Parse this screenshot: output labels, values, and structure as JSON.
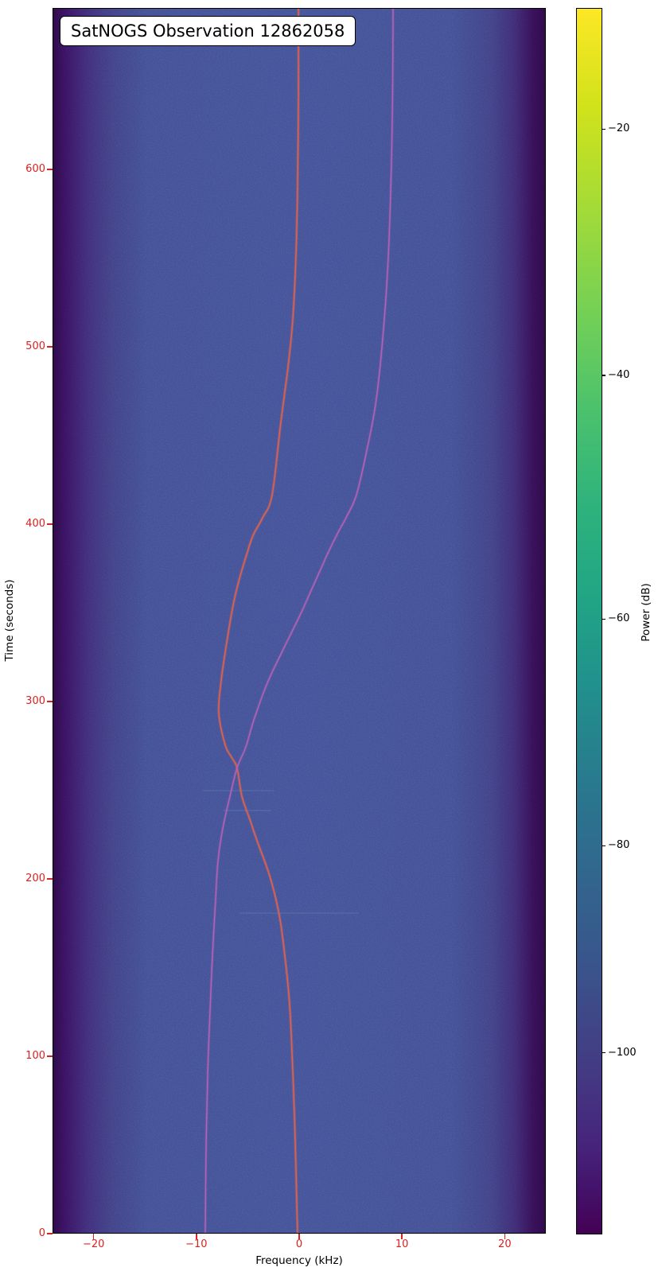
{
  "header": {
    "title": "SatNOGS Observation 12862058"
  },
  "chart_data": {
    "type": "heatmap",
    "subtype": "satnogs-waterfall-spectrogram",
    "title": "SatNOGS Observation 12862058",
    "xlabel": "Frequency (kHz)",
    "ylabel": "Time (seconds)",
    "colorbar_label": "Power (dB)",
    "xlim": [
      -24,
      24
    ],
    "ylim": [
      0,
      691
    ],
    "x_ticks": [
      -20,
      -10,
      0,
      10,
      20
    ],
    "y_ticks": [
      0,
      100,
      200,
      300,
      400,
      500,
      600
    ],
    "grid": false,
    "tick_color": "#dd2020",
    "background_field_color": "#414d8e",
    "edge_fade_color": "#2c0a45",
    "colorbar": {
      "colormap": "viridis",
      "ticks": [
        -20,
        -40,
        -60,
        -80,
        -100
      ],
      "tick_fractions_from_top": [
        0.099,
        0.3,
        0.499,
        0.684,
        0.853
      ],
      "top_color": "#fde725",
      "bottom_color": "#440154"
    },
    "series": [
      {
        "name": "carrier-doppler-trace-red",
        "color": "#e0604c",
        "glow": "rgba(235,110,85,0.28)",
        "points": [
          [
            -0.15,
            691
          ],
          [
            -0.15,
            642
          ],
          [
            -0.23,
            592
          ],
          [
            -0.39,
            552
          ],
          [
            -0.7,
            516
          ],
          [
            -1.16,
            489
          ],
          [
            -1.86,
            458
          ],
          [
            -2.71,
            417
          ],
          [
            -3.64,
            404
          ],
          [
            -4.57,
            394
          ],
          [
            -5.26,
            382
          ],
          [
            -5.73,
            373
          ],
          [
            -6.27,
            361
          ],
          [
            -6.66,
            350
          ],
          [
            -7.2,
            331
          ],
          [
            -7.67,
            312
          ],
          [
            -7.9,
            294
          ],
          [
            -7.28,
            276
          ],
          [
            -6.66,
            269
          ],
          [
            -6.12,
            263
          ],
          [
            -5.65,
            247
          ],
          [
            -4.88,
            234
          ],
          [
            -4.18,
            222
          ],
          [
            -2.94,
            202
          ],
          [
            -2.01,
            180
          ],
          [
            -1.47,
            157
          ],
          [
            -1.08,
            135
          ],
          [
            -0.85,
            113
          ],
          [
            -0.54,
            68
          ],
          [
            -0.39,
            36
          ],
          [
            -0.23,
            0
          ]
        ]
      },
      {
        "name": "satellite-doppler-trace-pink",
        "color": "#b161b6",
        "glow": "rgba(180,100,185,0.25)",
        "points": [
          [
            9.06,
            691
          ],
          [
            8.98,
            628
          ],
          [
            8.67,
            561
          ],
          [
            8.21,
            516
          ],
          [
            7.43,
            471
          ],
          [
            6.5,
            442
          ],
          [
            5.5,
            417
          ],
          [
            4.57,
            405
          ],
          [
            3.64,
            395
          ],
          [
            2.71,
            384
          ],
          [
            1.86,
            373
          ],
          [
            0.93,
            361
          ],
          [
            0.08,
            350
          ],
          [
            -0.85,
            339
          ],
          [
            -1.78,
            328
          ],
          [
            -3.17,
            311
          ],
          [
            -4.49,
            290
          ],
          [
            -5.26,
            275
          ],
          [
            -6.12,
            263
          ],
          [
            -6.81,
            247
          ],
          [
            -7.51,
            229
          ],
          [
            -7.97,
            211
          ],
          [
            -8.21,
            189
          ],
          [
            -8.52,
            157
          ],
          [
            -8.75,
            126
          ],
          [
            -8.98,
            90
          ],
          [
            -9.14,
            45
          ],
          [
            -9.21,
            0
          ]
        ]
      }
    ],
    "artifacts": [
      {
        "name": "faint-horizontal-band",
        "t": 250,
        "f1": -9.5,
        "f2": -2.5,
        "opacity": 0.12
      },
      {
        "name": "faint-horizontal-band",
        "t": 239,
        "f1": -7.5,
        "f2": -2.8,
        "opacity": 0.14
      },
      {
        "name": "faint-horizontal-band",
        "t": 181,
        "f1": -5.9,
        "f2": 5.7,
        "opacity": 0.12
      }
    ]
  }
}
